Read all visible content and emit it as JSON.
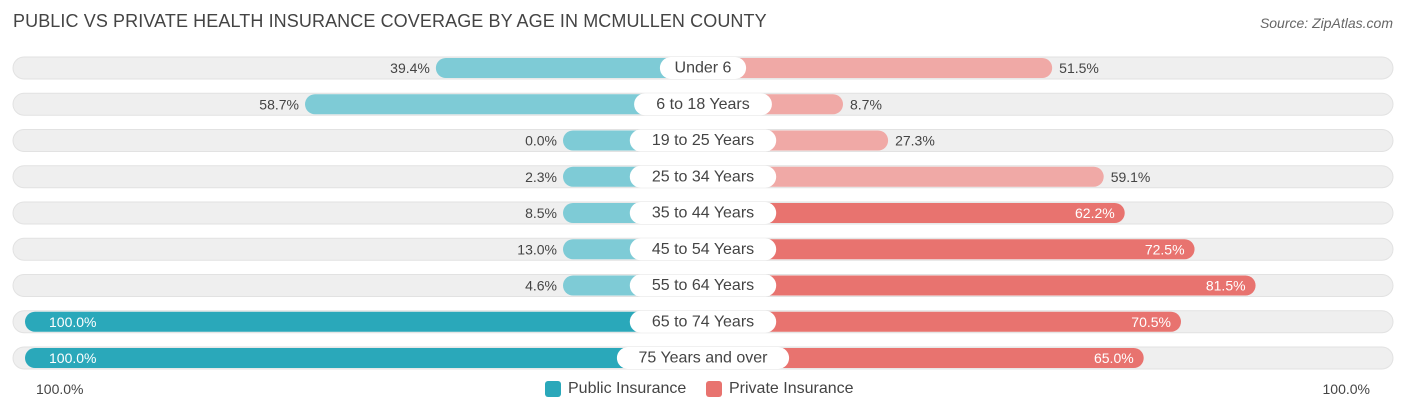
{
  "title": "PUBLIC VS PRIVATE HEALTH INSURANCE COVERAGE BY AGE IN MCMULLEN COUNTY",
  "source": "Source: ZipAtlas.com",
  "colors": {
    "public": "#2aa8ba",
    "public_light": "#7ecbd6",
    "private": "#e8736f",
    "private_light": "#f0a9a6",
    "track": "#efefef"
  },
  "legend": {
    "public_label": "Public Insurance",
    "private_label": "Private Insurance"
  },
  "axis": {
    "left_label": "100.0%",
    "right_label": "100.0%"
  },
  "chart_data": {
    "type": "bar",
    "orientation": "horizontal-diverging",
    "categories": [
      "Under 6",
      "6 to 18 Years",
      "19 to 25 Years",
      "25 to 34 Years",
      "35 to 44 Years",
      "45 to 54 Years",
      "55 to 64 Years",
      "65 to 74 Years",
      "75 Years and over"
    ],
    "series": [
      {
        "name": "Public Insurance",
        "values": [
          39.4,
          58.7,
          0.0,
          2.3,
          8.5,
          13.0,
          4.6,
          100.0,
          100.0
        ],
        "labels": [
          "39.4%",
          "58.7%",
          "0.0%",
          "2.3%",
          "8.5%",
          "13.0%",
          "4.6%",
          "100.0%",
          "100.0%"
        ]
      },
      {
        "name": "Private Insurance",
        "values": [
          51.5,
          8.7,
          27.3,
          59.1,
          62.2,
          72.5,
          81.5,
          70.5,
          65.0
        ],
        "labels": [
          "51.5%",
          "8.7%",
          "27.3%",
          "59.1%",
          "62.2%",
          "72.5%",
          "81.5%",
          "70.5%",
          "65.0%"
        ]
      }
    ],
    "xlim": [
      -100,
      100
    ],
    "legend_position": "bottom-center"
  }
}
